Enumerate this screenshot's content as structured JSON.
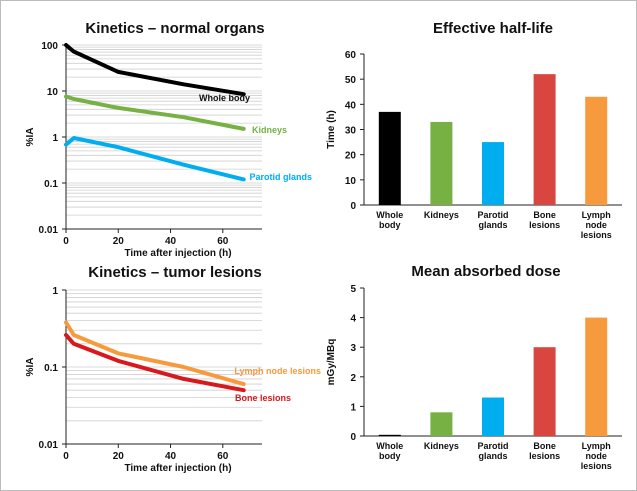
{
  "chart_data": [
    {
      "type": "line",
      "title": "Kinetics – normal organs",
      "xlabel": "Time after injection (h)",
      "ylabel": "%IA",
      "yscale": "log",
      "ylim": [
        0.01,
        100
      ],
      "xlim": [
        0,
        75
      ],
      "xticks": [
        "0",
        "20",
        "40",
        "60"
      ],
      "yticks": [
        "0.01",
        "0.1",
        "1",
        "10",
        "100"
      ],
      "grid": "minor horizontal gridlines",
      "series": [
        {
          "name": "Whole body",
          "color": "#000000",
          "x": [
            0,
            3,
            20,
            45,
            68
          ],
          "y": [
            100,
            72,
            26,
            14,
            8.5
          ]
        },
        {
          "name": "Kidneys",
          "color": "#77b043",
          "x": [
            0,
            3,
            20,
            45,
            68
          ],
          "y": [
            7.6,
            6.7,
            4.3,
            2.7,
            1.5
          ]
        },
        {
          "name": "Parotid glands",
          "color": "#00aeef",
          "x": [
            0,
            3,
            20,
            45,
            68
          ],
          "y": [
            0.68,
            0.95,
            0.6,
            0.25,
            0.12
          ]
        }
      ]
    },
    {
      "type": "bar",
      "title": "Effective half-life",
      "ylabel": "Time (h)",
      "ylim": [
        0,
        60
      ],
      "yticks": [
        "0",
        "10",
        "20",
        "30",
        "40",
        "50",
        "60"
      ],
      "categories": [
        [
          "Whole",
          "body"
        ],
        [
          "Kidneys"
        ],
        [
          "Parotid",
          "glands"
        ],
        [
          "Bone",
          "lesions"
        ],
        [
          "Lymph",
          "node",
          "lesions"
        ]
      ],
      "values": [
        37,
        33,
        25,
        52,
        43
      ],
      "colors": [
        "#000000",
        "#77b043",
        "#00aeef",
        "#d9463f",
        "#f79a3e"
      ]
    },
    {
      "type": "line",
      "title": "Kinetics – tumor lesions",
      "xlabel": "Time after injection (h)",
      "ylabel": "%IA",
      "yscale": "log",
      "ylim": [
        0.01,
        1
      ],
      "xlim": [
        0,
        75
      ],
      "xticks": [
        "0",
        "20",
        "40",
        "60"
      ],
      "yticks": [
        "0.01",
        "0.1",
        "1"
      ],
      "grid": "minor horizontal gridlines",
      "series": [
        {
          "name": "Lymph node lesions",
          "color": "#f79a3e",
          "x": [
            0,
            3,
            20,
            45,
            68
          ],
          "y": [
            0.38,
            0.26,
            0.15,
            0.1,
            0.06
          ]
        },
        {
          "name": "Bone lesions",
          "color": "#d7191c",
          "x": [
            0,
            3,
            20,
            45,
            68
          ],
          "y": [
            0.26,
            0.2,
            0.12,
            0.07,
            0.05
          ]
        }
      ]
    },
    {
      "type": "bar",
      "title": "Mean absorbed dose",
      "ylabel": "mGy/MBq",
      "ylim": [
        0,
        5
      ],
      "yticks": [
        "0",
        "1",
        "2",
        "3",
        "4",
        "5"
      ],
      "categories": [
        [
          "Whole",
          "body"
        ],
        [
          "Kidneys"
        ],
        [
          "Parotid",
          "glands"
        ],
        [
          "Bone",
          "lesions"
        ],
        [
          "Lymph",
          "node",
          "lesions"
        ]
      ],
      "values": [
        0.04,
        0.8,
        1.3,
        3.0,
        4.0
      ],
      "colors": [
        "#000000",
        "#77b043",
        "#00aeef",
        "#d9463f",
        "#f79a3e"
      ]
    }
  ]
}
